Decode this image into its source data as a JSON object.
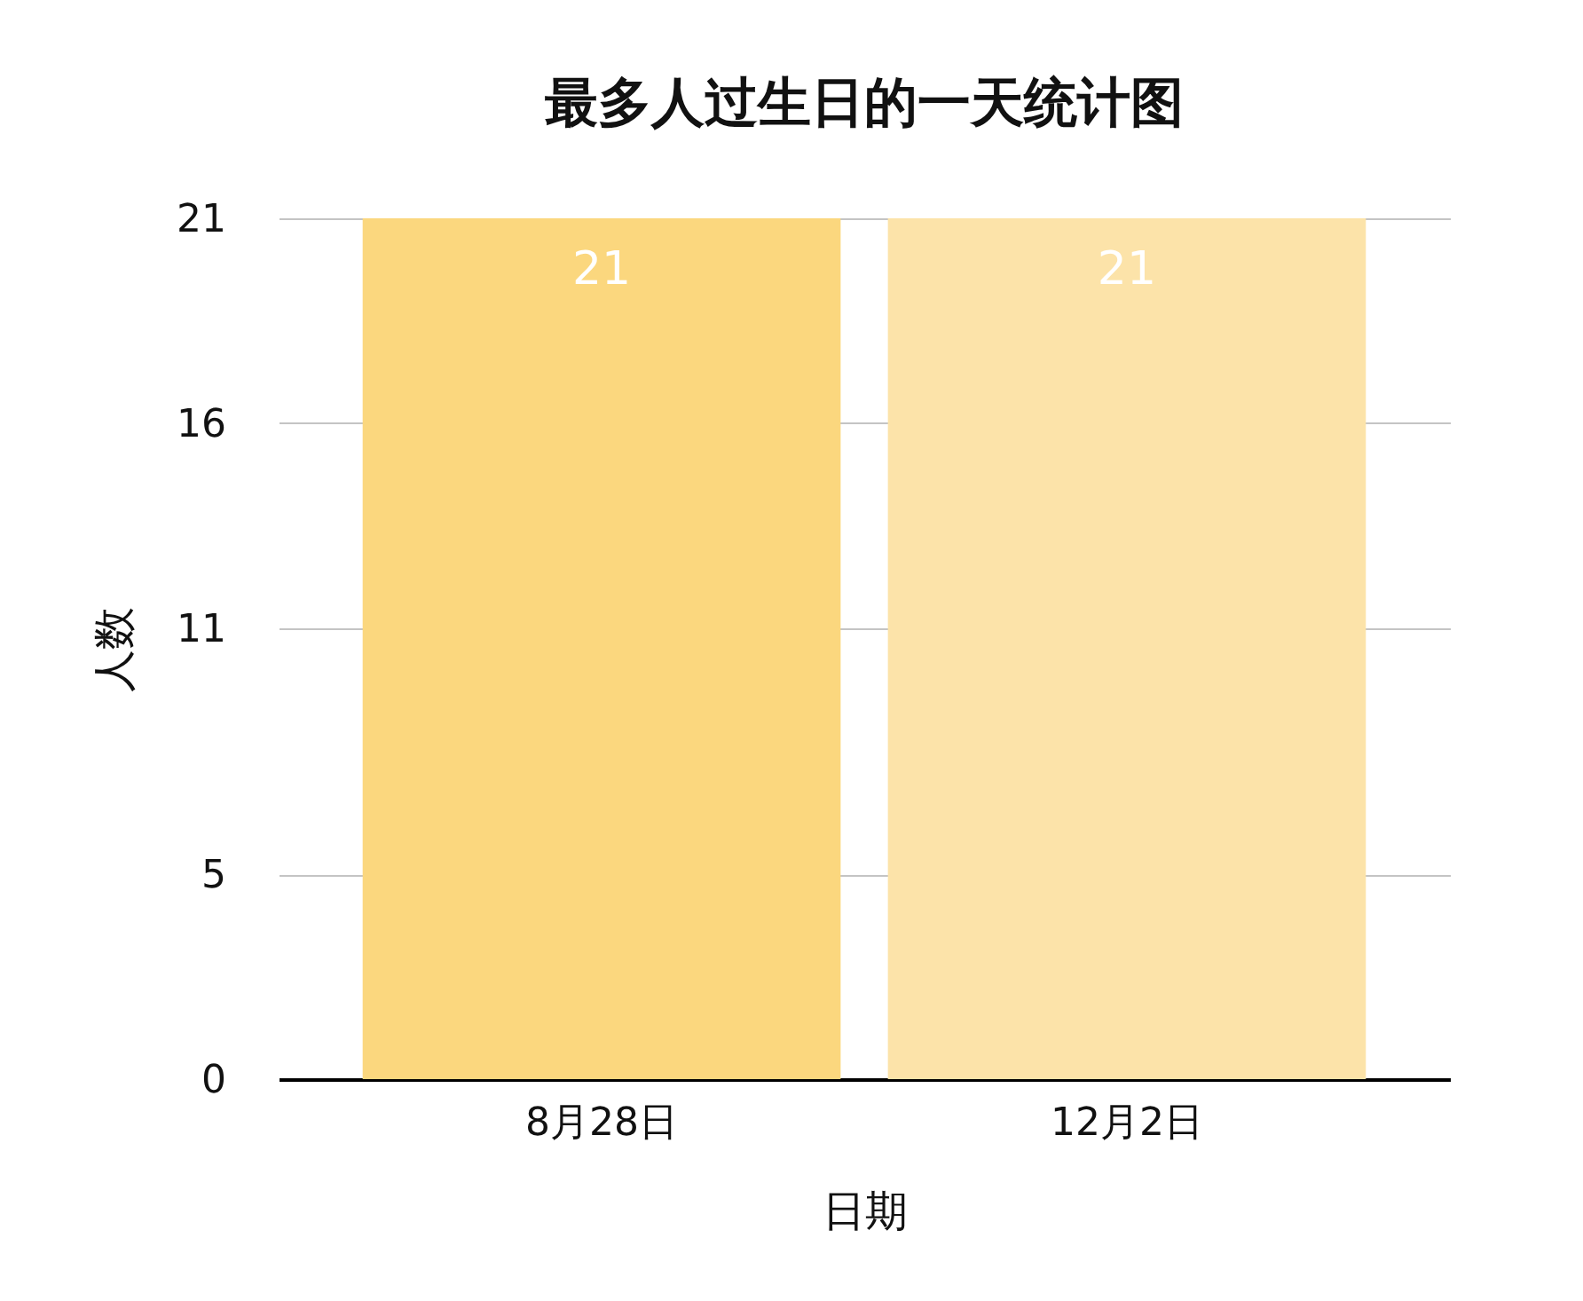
{
  "chart_data": {
    "type": "bar",
    "title": "最多人过生日的一天统计图",
    "xlabel": "日期",
    "ylabel": "人数",
    "categories": [
      "8月28日",
      "12月2日"
    ],
    "values": [
      21,
      21
    ],
    "colors": [
      "#fbd77e",
      "#fce3a9"
    ],
    "ylim": [
      0,
      21
    ],
    "yticks": [
      0,
      5,
      11,
      16,
      21
    ],
    "grid": "y",
    "data_labels": true,
    "legend": false
  }
}
